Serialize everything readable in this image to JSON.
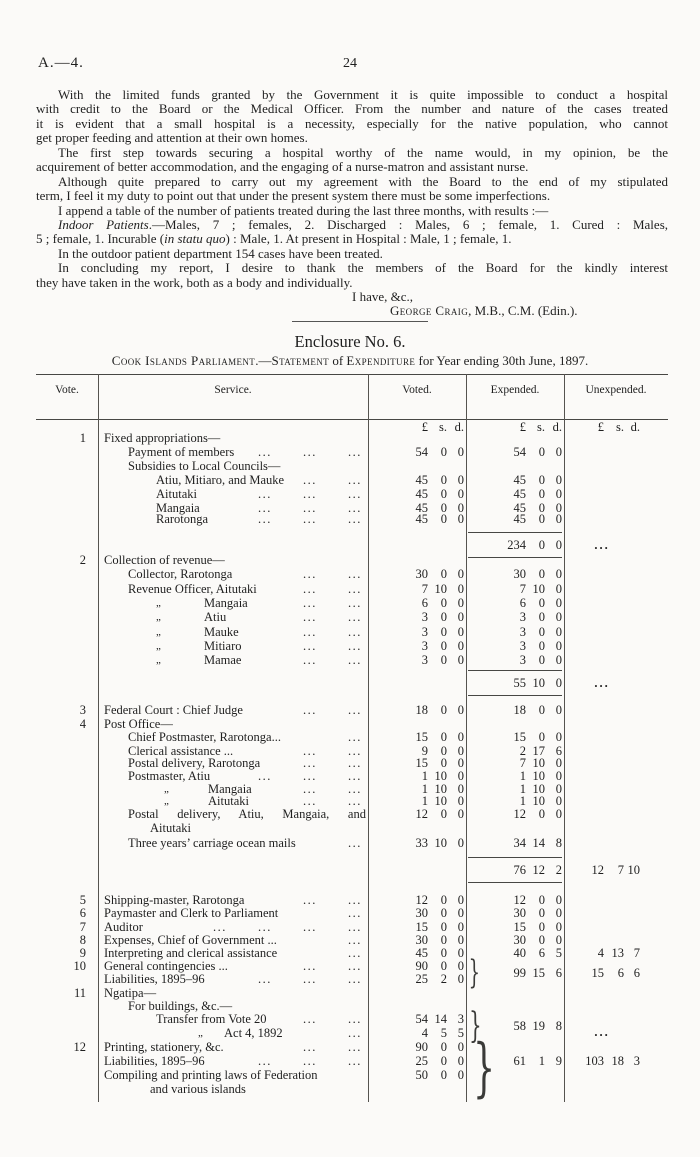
{
  "page": {
    "doc_ref": "A.—4.",
    "page_number": "24"
  },
  "report": {
    "paragraphs": [
      {
        "lines": [
          "With the limited funds granted by the Government it is quite impossible to conduct a hospital",
          "with credit to the Board or the Medical Officer.  From the number and nature of the cases treated",
          "it is evident that a small hospital is a necessity, especially for the native population, who cannot",
          "get proper feeding and attention at their own homes."
        ]
      },
      {
        "lines": [
          "The first step towards securing a hospital worthy of the name would, in my opinion, be the",
          "acquirement of better accommodation, and the engaging of a nurse-matron and assistant nurse."
        ]
      },
      {
        "lines": [
          "Although quite prepared to carry out my agreement with the Board to the end of my stipulated",
          "term, I feel it my duty to point out that under the present system there must be some imperfections."
        ]
      },
      {
        "lines": [
          "I append a table of the number of patients treated during the last three months, with results :—"
        ]
      },
      {
        "lines": [
          [
            {
              "t": "Indoor Patients",
              "i": true
            },
            {
              "t": ".—Males, 7 ; females, 2.  Discharged : Males, 6 ; female, 1.  Cured : Males,"
            }
          ],
          [
            {
              "t": "5 ; female, 1.  Incurable ("
            },
            {
              "t": "in statu quo",
              "i": true
            },
            {
              "t": ") : Male, 1.  At present in Hospital : Male, 1 ; female, 1."
            }
          ]
        ]
      },
      {
        "lines": [
          "In the outdoor patient department 154 cases have been treated."
        ]
      },
      {
        "lines": [
          "In concluding my report, I desire to thank the members of the Board for the kindly interest",
          "they have taken in the work, both as a body and individually."
        ]
      }
    ],
    "valediction": "I have, &c.,",
    "signature": [
      {
        "t": "George Craig",
        "sc": true
      },
      {
        "t": ", M.B., C.M. (Edin.)."
      }
    ]
  },
  "enclosure": {
    "title": "Enclosure No. 6.",
    "caption": [
      {
        "t": "Cook Islands Parliament",
        "sc": true
      },
      {
        "t": ".—"
      },
      {
        "t": "Statement",
        "sc": true
      },
      {
        "t": " of "
      },
      {
        "t": "Expenditure",
        "sc": true
      },
      {
        "t": " for Year ending 30th June, 1897."
      }
    ]
  },
  "table": {
    "columns": [
      "Vote.",
      "Service.",
      "Voted.",
      "Expended.",
      "Unexpended."
    ],
    "currency_header": [
      "£",
      "s.",
      "d."
    ],
    "rows": [
      {
        "v": "1",
        "ind": 0,
        "t": "Fixed appropriations—"
      },
      {
        "ind": 1,
        "t": "Payment of members",
        "dots": 3,
        "vd": [
          "54",
          "0",
          "0"
        ],
        "ex": [
          "54",
          "0",
          "0"
        ]
      },
      {
        "ind": 1,
        "t": "Subsidies to Local Councils—"
      },
      {
        "ind": 2,
        "t": "Atiu, Mitiaro, and Mauke",
        "dots": 2,
        "vd": [
          "45",
          "0",
          "0"
        ],
        "ex": [
          "45",
          "0",
          "0"
        ]
      },
      {
        "ind": 2,
        "t": "Aitutaki",
        "dots": 3,
        "vd": [
          "45",
          "0",
          "0"
        ],
        "ex": [
          "45",
          "0",
          "0"
        ]
      },
      {
        "ind": 2,
        "t": "Mangaia",
        "dots": 3,
        "vd": [
          "45",
          "0",
          "0"
        ],
        "ex": [
          "45",
          "0",
          "0"
        ]
      },
      {
        "ind": 2,
        "t": "Rarotonga",
        "dots": 3,
        "vd": [
          "45",
          "0",
          "0"
        ],
        "ex": [
          "45",
          "0",
          "0"
        ]
      },
      {
        "type": "subtotal",
        "ex": [
          "234",
          "0",
          "0"
        ],
        "un": "dots"
      },
      {
        "v": "2",
        "ind": 0,
        "t": "Collection of revenue—"
      },
      {
        "ind": 1,
        "t": "Collector, Rarotonga",
        "dots": 2,
        "vd": [
          "30",
          "0",
          "0"
        ],
        "ex": [
          "30",
          "0",
          "0"
        ]
      },
      {
        "ind": 1,
        "t": "Revenue Officer, Aitutaki",
        "dots": 2,
        "vd": [
          "7",
          "10",
          "0"
        ],
        "ex": [
          "7",
          "10",
          "0"
        ]
      },
      {
        "ind": "d1",
        "t": "Mangaia",
        "dots": 2,
        "vd": [
          "6",
          "0",
          "0"
        ],
        "ex": [
          "6",
          "0",
          "0"
        ]
      },
      {
        "ind": "d1",
        "t": "Atiu",
        "dots": 2,
        "vd": [
          "3",
          "0",
          "0"
        ],
        "ex": [
          "3",
          "0",
          "0"
        ]
      },
      {
        "ind": "d1",
        "t": "Mauke",
        "dots": 2,
        "vd": [
          "3",
          "0",
          "0"
        ],
        "ex": [
          "3",
          "0",
          "0"
        ]
      },
      {
        "ind": "d1",
        "t": "Mitiaro",
        "dots": 2,
        "vd": [
          "3",
          "0",
          "0"
        ],
        "ex": [
          "3",
          "0",
          "0"
        ]
      },
      {
        "ind": "d1",
        "t": "Mamae",
        "dots": 2,
        "vd": [
          "3",
          "0",
          "0"
        ],
        "ex": [
          "3",
          "0",
          "0"
        ]
      },
      {
        "type": "subtotal",
        "ex": [
          "55",
          "10",
          "0"
        ],
        "un": "dots"
      },
      {
        "v": "3",
        "ind": 0,
        "t": "Federal Court : Chief Judge",
        "dots": 2,
        "vd": [
          "18",
          "0",
          "0"
        ],
        "ex": [
          "18",
          "0",
          "0"
        ]
      },
      {
        "v": "4",
        "ind": 0,
        "t": "Post Office—"
      },
      {
        "ind": 1,
        "t": "Chief Postmaster, Rarotonga...",
        "dots": 1,
        "vd": [
          "15",
          "0",
          "0"
        ],
        "ex": [
          "15",
          "0",
          "0"
        ]
      },
      {
        "ind": 1,
        "t": "Clerical assistance ...",
        "dots": 2,
        "vd": [
          "9",
          "0",
          "0"
        ],
        "ex": [
          "2",
          "17",
          "6"
        ]
      },
      {
        "ind": 1,
        "t": "Postal delivery, Rarotonga",
        "dots": 2,
        "vd": [
          "15",
          "0",
          "0"
        ],
        "ex": [
          "7",
          "10",
          "0"
        ]
      },
      {
        "ind": 1,
        "t": "Postmaster, Atiu",
        "dots": 3,
        "vd": [
          "1",
          "10",
          "0"
        ],
        "ex": [
          "1",
          "10",
          "0"
        ]
      },
      {
        "ind": "d2",
        "t": "Mangaia",
        "dots": 2,
        "vd": [
          "1",
          "10",
          "0"
        ],
        "ex": [
          "1",
          "10",
          "0"
        ]
      },
      {
        "ind": "d2",
        "t": "Aitutaki",
        "dots": 2,
        "vd": [
          "1",
          "10",
          "0"
        ],
        "ex": [
          "1",
          "10",
          "0"
        ]
      },
      {
        "ind": 1,
        "t": "Postal delivery, Atiu, Mangaia, and",
        "just": true,
        "vd": [
          "12",
          "0",
          "0"
        ],
        "ex": [
          "12",
          "0",
          "0"
        ]
      },
      {
        "ind": "c",
        "t": "Aitutaki"
      },
      {
        "ind": 1,
        "t": "Three years’ carriage ocean mails",
        "dots": 1,
        "vd": [
          "33",
          "10",
          "0"
        ],
        "ex": [
          "34",
          "14",
          "8"
        ]
      },
      {
        "type": "subtotal",
        "ex": [
          "76",
          "12",
          "2"
        ],
        "un": [
          "12",
          "7",
          "10"
        ]
      },
      {
        "v": "5",
        "ind": 0,
        "t": "Shipping-master, Rarotonga",
        "dots": 2,
        "vd": [
          "12",
          "0",
          "0"
        ],
        "ex": [
          "12",
          "0",
          "0"
        ]
      },
      {
        "v": "6",
        "ind": 0,
        "t": "Paymaster and Clerk to Parliament",
        "dots": 1,
        "vd": [
          "30",
          "0",
          "0"
        ],
        "ex": [
          "30",
          "0",
          "0"
        ]
      },
      {
        "v": "7",
        "ind": 0,
        "t": "Auditor",
        "dots": 4,
        "vd": [
          "15",
          "0",
          "0"
        ],
        "ex": [
          "15",
          "0",
          "0"
        ]
      },
      {
        "v": "8",
        "ind": 0,
        "t": "Expenses, Chief of Government ...",
        "dots": 1,
        "vd": [
          "30",
          "0",
          "0"
        ],
        "ex": [
          "30",
          "0",
          "0"
        ]
      },
      {
        "v": "9",
        "ind": 0,
        "t": "Interpreting and clerical assistance",
        "dots": 1,
        "vd": [
          "45",
          "0",
          "0"
        ],
        "ex": [
          "40",
          "6",
          "5"
        ],
        "un": [
          "4",
          "13",
          "7"
        ]
      },
      {
        "v": "10",
        "ind": 0,
        "t": "General contingencies ...",
        "dots": 2,
        "vd": [
          "90",
          "0",
          "0"
        ]
      },
      {
        "ind": 0,
        "t": "Liabilities, 1895–96",
        "dots": 3,
        "vd": [
          "25",
          "2",
          "0"
        ]
      },
      {
        "v": "11",
        "ind": 0,
        "t": "Ngatipa—"
      },
      {
        "ind": 1,
        "t": "For buildings, &c.—"
      },
      {
        "ind": 2,
        "t": "Transfer from Vote 20",
        "dots": 2,
        "vd": [
          "54",
          "14",
          "3"
        ]
      },
      {
        "ind": "d3",
        "t": "Act 4, 1892",
        "dots": 1,
        "vd": [
          "4",
          "5",
          "5"
        ]
      },
      {
        "v": "12",
        "ind": 0,
        "t": "Printing, stationery, &c.",
        "dots": 2,
        "vd": [
          "90",
          "0",
          "0"
        ]
      },
      {
        "ind": 0,
        "t": "Liabilities, 1895–96",
        "dots": 3,
        "vd": [
          "25",
          "0",
          "0"
        ]
      },
      {
        "ind": 0,
        "t": "Compiling and printing laws of Federation",
        "vd": [
          "50",
          "0",
          "0"
        ]
      },
      {
        "ind": "c",
        "t": "and various islands"
      }
    ],
    "groups": [
      {
        "ex": [
          "99",
          "15",
          "6"
        ],
        "un": [
          "15",
          "6",
          "6"
        ]
      },
      {
        "ex": [
          "58",
          "19",
          "8"
        ],
        "un": "dots"
      },
      {
        "ex": [
          "61",
          "1",
          "9"
        ],
        "un": [
          "103",
          "18",
          "3"
        ]
      }
    ],
    "ditto_mark": "„",
    "leader": "...",
    "ellipsis": "..."
  }
}
